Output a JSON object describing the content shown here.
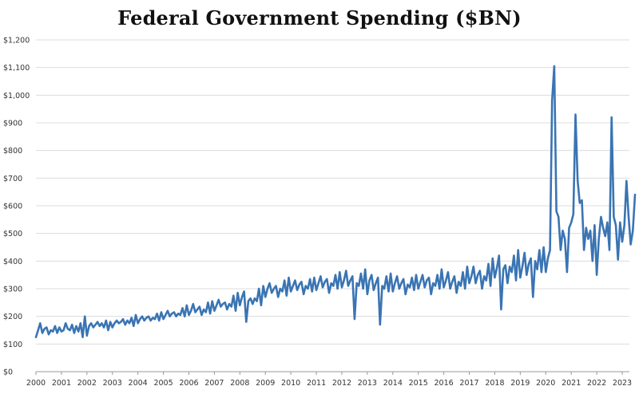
{
  "chart_data": {
    "type": "line",
    "title": "Federal Government Spending ($BN)",
    "xlabel": "",
    "ylabel": "",
    "ylim": [
      0,
      1200
    ],
    "y_tick_values": [
      0,
      100,
      200,
      300,
      400,
      500,
      600,
      700,
      800,
      900,
      1000,
      1100,
      1200
    ],
    "y_tick_labels": [
      "$0",
      "$100",
      "$200",
      "$300",
      "$400",
      "$500",
      "$600",
      "$700",
      "$800",
      "$900",
      "$1,000",
      "$1,100",
      "$1,200"
    ],
    "x_ticks": [
      "2000",
      "2001",
      "2002",
      "2003",
      "2004",
      "2005",
      "2006",
      "2007",
      "2008",
      "2009",
      "2010",
      "2011",
      "2012",
      "2013",
      "2014",
      "2015",
      "2016",
      "2017",
      "2018",
      "2019",
      "2020",
      "2021",
      "2022",
      "2023"
    ],
    "x_start": "2000-01",
    "grid": true,
    "legend": "none",
    "line_color": "#3a74b3",
    "monthly_values": [
      125,
      150,
      175,
      140,
      155,
      160,
      135,
      150,
      145,
      165,
      140,
      160,
      145,
      150,
      175,
      155,
      150,
      170,
      140,
      165,
      145,
      175,
      125,
      200,
      130,
      165,
      175,
      160,
      170,
      180,
      165,
      175,
      160,
      185,
      150,
      180,
      160,
      175,
      185,
      175,
      180,
      190,
      170,
      185,
      175,
      195,
      165,
      205,
      175,
      190,
      200,
      185,
      195,
      200,
      185,
      195,
      190,
      210,
      185,
      215,
      190,
      205,
      220,
      200,
      210,
      215,
      200,
      210,
      205,
      230,
      200,
      240,
      205,
      220,
      245,
      215,
      225,
      235,
      205,
      225,
      215,
      250,
      210,
      255,
      220,
      240,
      260,
      235,
      245,
      250,
      225,
      245,
      235,
      275,
      220,
      285,
      240,
      270,
      290,
      180,
      255,
      265,
      245,
      265,
      255,
      300,
      240,
      310,
      270,
      300,
      320,
      285,
      300,
      310,
      270,
      300,
      290,
      330,
      275,
      340,
      290,
      310,
      330,
      295,
      315,
      325,
      280,
      310,
      300,
      335,
      290,
      340,
      295,
      320,
      345,
      305,
      325,
      335,
      285,
      320,
      310,
      350,
      300,
      360,
      305,
      330,
      365,
      310,
      330,
      345,
      190,
      320,
      310,
      355,
      300,
      370,
      280,
      330,
      350,
      295,
      320,
      340,
      170,
      310,
      300,
      345,
      290,
      355,
      290,
      320,
      345,
      300,
      320,
      335,
      280,
      315,
      305,
      340,
      295,
      350,
      300,
      325,
      350,
      305,
      330,
      340,
      280,
      320,
      310,
      350,
      300,
      370,
      305,
      330,
      360,
      300,
      325,
      345,
      285,
      325,
      310,
      360,
      300,
      380,
      320,
      345,
      380,
      320,
      350,
      365,
      300,
      345,
      330,
      390,
      310,
      410,
      340,
      375,
      420,
      225,
      370,
      385,
      320,
      380,
      360,
      420,
      330,
      440,
      340,
      380,
      430,
      350,
      390,
      410,
      270,
      400,
      370,
      440,
      360,
      450,
      360,
      410,
      440,
      980,
      1105,
      580,
      560,
      440,
      510,
      480,
      360,
      520,
      540,
      570,
      930,
      690,
      610,
      620,
      440,
      520,
      480,
      510,
      400,
      530,
      350,
      480,
      560,
      520,
      490,
      540,
      440,
      920,
      560,
      530,
      405,
      540,
      470,
      530,
      690,
      560,
      460,
      510,
      640
    ]
  }
}
